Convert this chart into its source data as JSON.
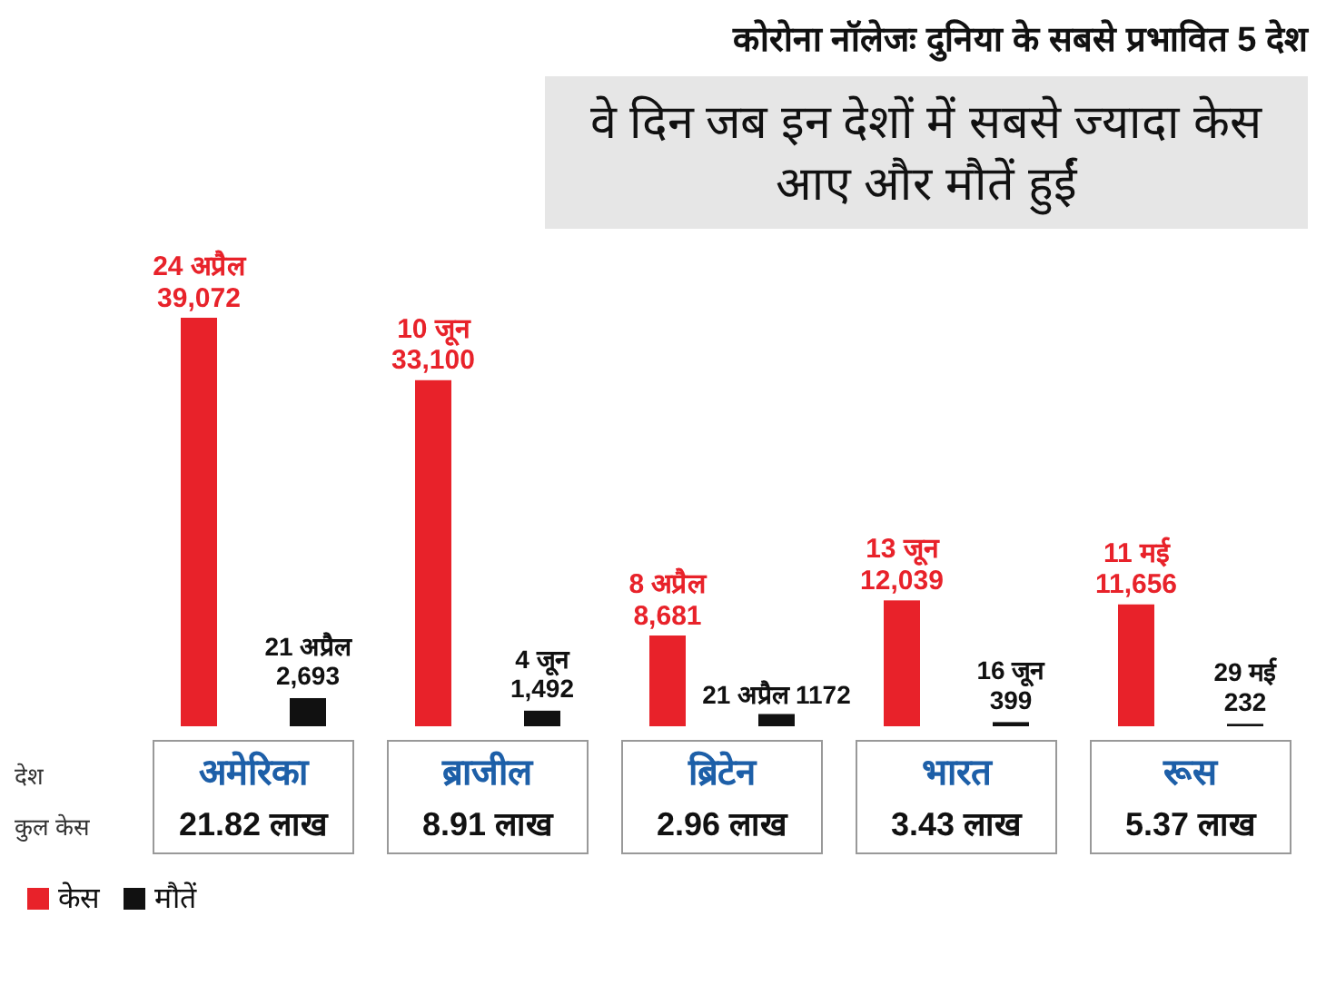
{
  "chart_data": {
    "type": "bar",
    "title": "कोरोना नॉलेजः दुनिया के सबसे प्रभावित 5 देश",
    "subtitle": "वे दिन जब इन देशों में सबसे ज्यादा केस आए और मौतें हुईं",
    "categories": [
      "अमेरिका",
      "ब्राजील",
      "ब्रिटेन",
      "भारत",
      "रूस"
    ],
    "series": [
      {
        "name": "केस",
        "color": "#e8222a",
        "values": [
          39072,
          33100,
          8681,
          12039,
          11656
        ],
        "value_labels": [
          "24 अप्रैल\n39,072",
          "10 जून\n33,100",
          "8 अप्रैल\n8,681",
          "13 जून\n12,039",
          "11 मई\n11,656"
        ]
      },
      {
        "name": "मौतें",
        "color": "#111111",
        "values": [
          2693,
          1492,
          1172,
          399,
          232
        ],
        "value_labels": [
          "21 अप्रैल\n2,693",
          "4 जून\n1,492",
          "21 अप्रैल 1172",
          "16 जून\n399",
          "29 मई\n232"
        ]
      }
    ],
    "annotations": [
      "देश",
      "कुल केस",
      "21.82 लाख",
      "8.91 लाख",
      "2.96 लाख",
      "3.43 लाख",
      "5.37 लाख"
    ],
    "legend": "bottom left"
  }
}
